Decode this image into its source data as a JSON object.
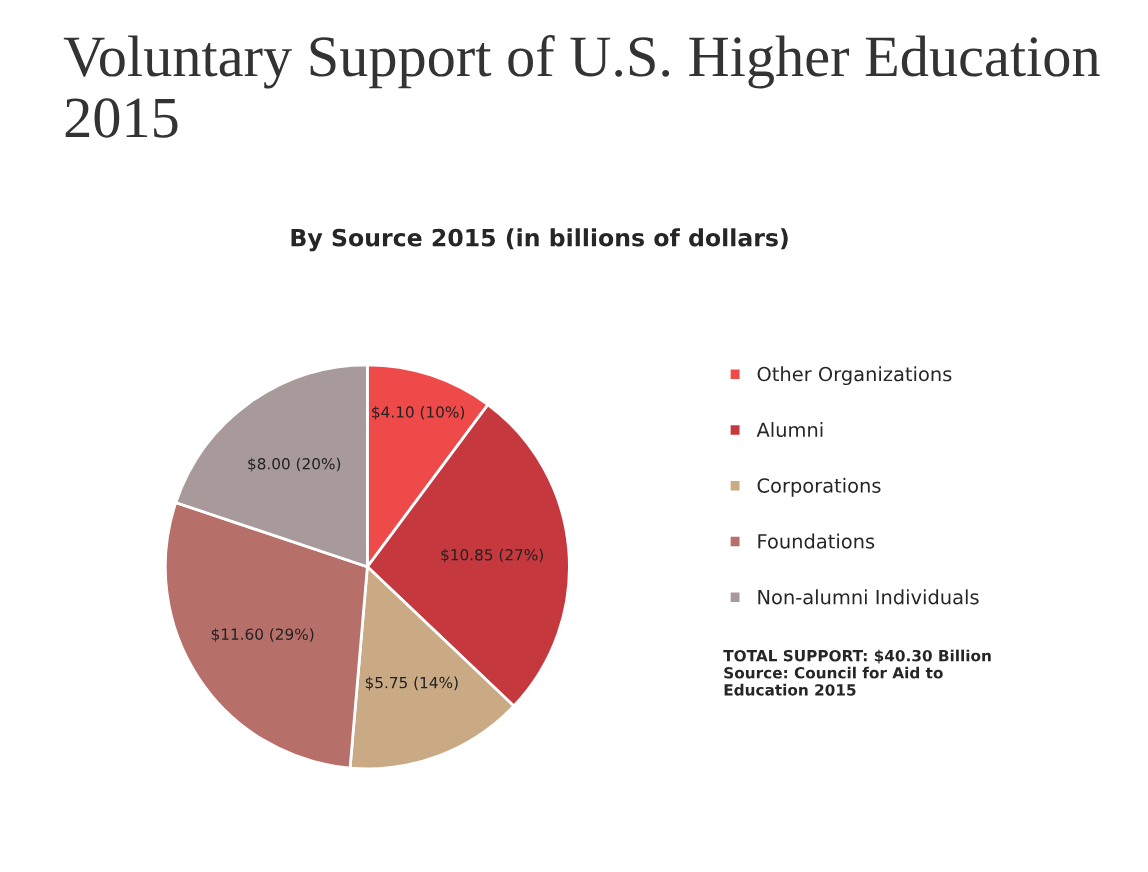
{
  "chart_data": {
    "type": "pie",
    "title": "Voluntary Support of U.S. Higher Education 2015",
    "subtitle": "By Source 2015 (in billions of dollars)",
    "categories": [
      "Other Organizations",
      "Alumni",
      "Corporations",
      "Foundations",
      "Non-alumni Individuals"
    ],
    "values": [
      4.1,
      10.85,
      5.75,
      11.6,
      8.0
    ],
    "colors": [
      "#ef4a4a",
      "#c5383d",
      "#c9aa85",
      "#b76f69",
      "#a89a9a"
    ],
    "value_labels": [
      "$4.10 (10%)",
      "$10.85 (27%)",
      "$5.75 (14%)",
      "$11.60 (29%)",
      "$8.00 (20%)"
    ],
    "legend": "right",
    "annotations": [
      "TOTAL SUPPORT: $40.30 Billion\nSource: Council for Aid to\nEducation 2015"
    ]
  }
}
